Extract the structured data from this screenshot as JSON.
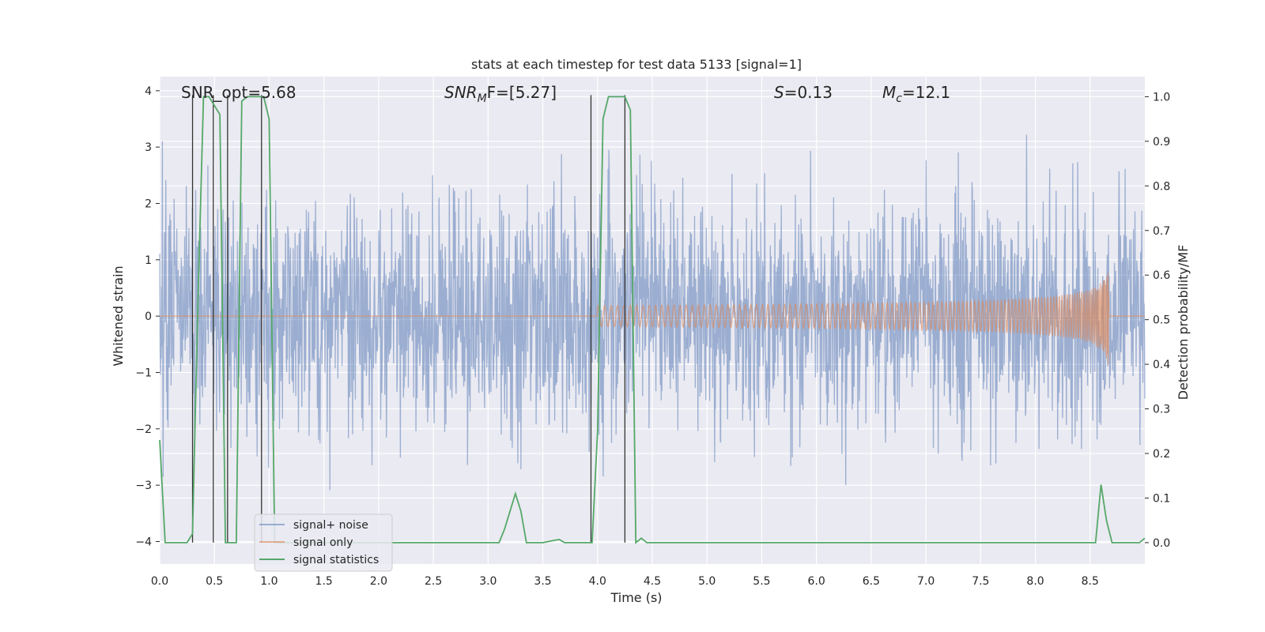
{
  "chart_data": {
    "type": "line",
    "title": "stats at each timestep for test data 5133 [signal=1]",
    "xlabel": "Time (s)",
    "ylabel_left": "Whitened strain",
    "ylabel_right": "Detection probability/MF",
    "xlim": [
      0.0,
      9.0
    ],
    "ylim_left": [
      -4.4,
      4.25
    ],
    "ylim_right": [
      -0.048,
      1.045
    ],
    "x_ticks": [
      "0.0",
      "0.5",
      "1.0",
      "1.5",
      "2.0",
      "2.5",
      "3.0",
      "3.5",
      "4.0",
      "4.5",
      "5.0",
      "5.5",
      "6.0",
      "6.5",
      "7.0",
      "7.5",
      "8.0",
      "8.5"
    ],
    "x_tick_values": [
      0.0,
      0.5,
      1.0,
      1.5,
      2.0,
      2.5,
      3.0,
      3.5,
      4.0,
      4.5,
      5.0,
      5.5,
      6.0,
      6.5,
      7.0,
      7.5,
      8.0,
      8.5
    ],
    "y_left_ticks": [
      "−4",
      "−3",
      "−2",
      "−1",
      "0",
      "1",
      "2",
      "3",
      "4"
    ],
    "y_left_tick_values": [
      -4,
      -3,
      -2,
      -1,
      0,
      1,
      2,
      3,
      4
    ],
    "y_right_ticks": [
      "0.0",
      "0.1",
      "0.2",
      "0.3",
      "0.4",
      "0.5",
      "0.6",
      "0.7",
      "0.8",
      "0.9",
      "1.0"
    ],
    "y_right_tick_values": [
      0.0,
      0.1,
      0.2,
      0.3,
      0.4,
      0.5,
      0.6,
      0.7,
      0.8,
      0.9,
      1.0
    ],
    "grid": true,
    "legend_position": "bottom-left",
    "annotations": {
      "snr_opt": "SNR_opt=5.68",
      "snr_mf_base": "SNR",
      "snr_mf_sub": "M",
      "snr_mf_tail": "F=[5.27]",
      "s_var": "S",
      "s_val": "=0.13",
      "mc_var": "M",
      "mc_sub": "c",
      "mc_val": "=12.1"
    },
    "series": [
      {
        "name": "signal+ noise",
        "axis": "left",
        "color": "#4c72b0",
        "style": "noise",
        "amplitude_std": 1.0
      },
      {
        "name": "signal only",
        "axis": "left",
        "color": "#dd8452",
        "style": "chirp",
        "t_start": 4.0,
        "t_merger": 8.67,
        "peak_amplitude": 0.95
      },
      {
        "name": "signal statistics",
        "axis": "right",
        "color": "#55a868",
        "x": [
          0.0,
          0.05,
          0.1,
          0.15,
          0.2,
          0.25,
          0.3,
          0.35,
          0.4,
          0.45,
          0.5,
          0.55,
          0.6,
          0.65,
          0.7,
          0.75,
          0.8,
          0.85,
          0.9,
          0.95,
          1.0,
          1.05,
          1.1,
          1.2,
          1.5,
          2.0,
          2.5,
          3.0,
          3.1,
          3.15,
          3.2,
          3.25,
          3.3,
          3.35,
          3.4,
          3.5,
          3.6,
          3.65,
          3.7,
          3.8,
          3.9,
          3.95,
          4.0,
          4.05,
          4.1,
          4.15,
          4.2,
          4.25,
          4.3,
          4.35,
          4.4,
          4.45,
          4.5,
          5.0,
          5.5,
          6.0,
          6.5,
          7.0,
          7.5,
          8.0,
          8.4,
          8.5,
          8.55,
          8.6,
          8.65,
          8.7,
          8.8,
          8.9,
          8.95,
          9.0
        ],
        "values": [
          0.23,
          0.0,
          0.0,
          0.0,
          0.0,
          0.0,
          0.02,
          0.55,
          1.0,
          1.0,
          0.98,
          0.96,
          0.0,
          0.0,
          0.0,
          0.99,
          1.0,
          1.0,
          1.0,
          1.0,
          0.95,
          0.0,
          0.0,
          0.0,
          0.0,
          0.0,
          0.0,
          0.0,
          0.0,
          0.03,
          0.07,
          0.11,
          0.07,
          0.0,
          0.0,
          0.0,
          0.005,
          0.007,
          0.0,
          0.0,
          0.0,
          0.0,
          0.25,
          0.95,
          1.0,
          1.0,
          1.0,
          1.0,
          0.97,
          0.0,
          0.01,
          0.0,
          0.0,
          0.0,
          0.0,
          0.0,
          0.0,
          0.0,
          0.0,
          0.0,
          0.0,
          0.0,
          0.0,
          0.13,
          0.05,
          0.0,
          0.0,
          0.0,
          0.0,
          0.01
        ]
      }
    ],
    "vertical_markers": [
      0.3,
      0.49,
      0.62,
      0.93,
      3.94,
      4.25
    ]
  },
  "colors": {
    "plot_background": "#eaeaf2",
    "grid": "#ffffff",
    "marker_lines": "#333333"
  }
}
